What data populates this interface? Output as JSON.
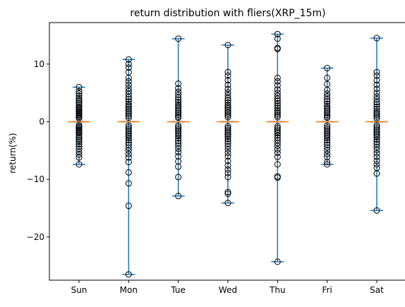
{
  "chart_data": {
    "type": "violin",
    "title": "return distribution with fliers(XRP_15m)",
    "xlabel": "",
    "ylabel": "return(%)",
    "categories": [
      "Sun",
      "Mon",
      "Tue",
      "Wed",
      "Thu",
      "Fri",
      "Sat"
    ],
    "ylim": [
      -27.5,
      17.2
    ],
    "yticks": [
      10,
      0,
      -10,
      -20
    ],
    "ytick_labels": [
      "10",
      "0",
      "−10",
      "−20"
    ],
    "grid": false,
    "series": [
      {
        "category": "Sun",
        "max": 6.0,
        "min": -7.4,
        "median": 0.0,
        "fliers": [
          6.0,
          5.3,
          4.9,
          4.5,
          4.1,
          3.8,
          3.5,
          3.2,
          2.9,
          2.6,
          2.4,
          2.2,
          2.0,
          1.8,
          1.6,
          1.4,
          1.2,
          1.0,
          0.8,
          0.6,
          -0.6,
          -0.8,
          -1.0,
          -1.2,
          -1.4,
          -1.6,
          -1.8,
          -2.0,
          -2.3,
          -2.6,
          -2.9,
          -3.2,
          -3.5,
          -3.9,
          -4.3,
          -4.7,
          -5.2,
          -5.7,
          -6.2,
          -7.4
        ]
      },
      {
        "category": "Mon",
        "max": 10.8,
        "min": -26.5,
        "median": 0.0,
        "fliers": [
          10.8,
          10.0,
          9.4,
          8.6,
          7.6,
          7.0,
          6.4,
          5.8,
          5.3,
          4.8,
          4.3,
          3.9,
          3.5,
          3.1,
          2.8,
          2.5,
          2.2,
          1.9,
          1.6,
          1.3,
          1.0,
          0.7,
          -0.7,
          -1.0,
          -1.3,
          -1.6,
          -1.9,
          -2.2,
          -2.5,
          -2.8,
          -3.2,
          -3.6,
          -4.0,
          -4.5,
          -5.0,
          -5.6,
          -6.2,
          -7.0,
          -8.8,
          -10.7,
          -14.6,
          -26.5
        ]
      },
      {
        "category": "Tue",
        "max": 14.4,
        "min": -12.9,
        "median": 0.0,
        "fliers": [
          14.4,
          6.6,
          5.8,
          5.2,
          4.7,
          4.2,
          3.8,
          3.4,
          3.0,
          2.7,
          2.4,
          2.1,
          1.8,
          1.5,
          1.2,
          0.9,
          0.7,
          -0.7,
          -1.0,
          -1.3,
          -1.6,
          -1.9,
          -2.2,
          -2.5,
          -2.9,
          -3.3,
          -3.7,
          -4.2,
          -4.7,
          -5.3,
          -6.0,
          -6.9,
          -7.8,
          -9.6,
          -12.9
        ]
      },
      {
        "category": "Wed",
        "max": 13.3,
        "min": -14.1,
        "median": 0.0,
        "fliers": [
          13.3,
          8.6,
          8.0,
          7.2,
          6.4,
          5.7,
          5.1,
          4.6,
          4.1,
          3.7,
          3.3,
          2.9,
          2.6,
          2.3,
          2.0,
          1.7,
          1.4,
          1.1,
          0.8,
          -0.8,
          -1.1,
          -1.4,
          -1.7,
          -2.0,
          -2.3,
          -2.6,
          -3.0,
          -3.4,
          -3.8,
          -4.3,
          -4.8,
          -5.4,
          -6.0,
          -6.8,
          -7.6,
          -8.3,
          -8.9,
          -9.6,
          -12.2,
          -12.5,
          -14.1
        ]
      },
      {
        "category": "Thu",
        "max": 15.2,
        "min": -24.3,
        "median": 0.0,
        "fliers": [
          15.2,
          14.4,
          12.8,
          12.6,
          7.6,
          7.0,
          6.3,
          5.6,
          5.0,
          4.5,
          4.0,
          3.6,
          3.2,
          2.8,
          2.4,
          2.0,
          1.7,
          1.4,
          1.1,
          0.8,
          -0.8,
          -1.1,
          -1.4,
          -1.7,
          -2.0,
          -2.4,
          -2.8,
          -3.2,
          -3.7,
          -4.2,
          -4.8,
          -5.4,
          -6.1,
          -7.4,
          -9.5,
          -9.7,
          -24.3
        ]
      },
      {
        "category": "Fri",
        "max": 9.3,
        "min": -7.4,
        "median": 0.0,
        "fliers": [
          9.3,
          7.6,
          6.5,
          5.5,
          4.9,
          4.4,
          3.9,
          3.5,
          3.1,
          2.7,
          2.4,
          2.1,
          1.8,
          1.5,
          1.2,
          0.9,
          0.7,
          -0.7,
          -1.0,
          -1.3,
          -1.6,
          -1.9,
          -2.2,
          -2.5,
          -2.8,
          -3.2,
          -3.6,
          -4.0,
          -4.5,
          -5.0,
          -5.6,
          -6.1,
          -7.0,
          -7.4
        ]
      },
      {
        "category": "Sat",
        "max": 14.5,
        "min": -15.4,
        "median": 0.0,
        "fliers": [
          14.5,
          8.6,
          8.0,
          7.2,
          6.4,
          5.7,
          5.0,
          4.4,
          3.9,
          3.4,
          3.0,
          2.6,
          2.2,
          1.8,
          1.5,
          1.2,
          0.9,
          0.6,
          -0.6,
          -0.9,
          -1.2,
          -1.5,
          -1.8,
          -2.1,
          -2.4,
          -2.7,
          -3.1,
          -3.5,
          -3.9,
          -4.4,
          -4.9,
          -5.5,
          -6.1,
          -6.8,
          -7.4,
          -8.0,
          -9.0,
          -15.4
        ]
      }
    ]
  }
}
